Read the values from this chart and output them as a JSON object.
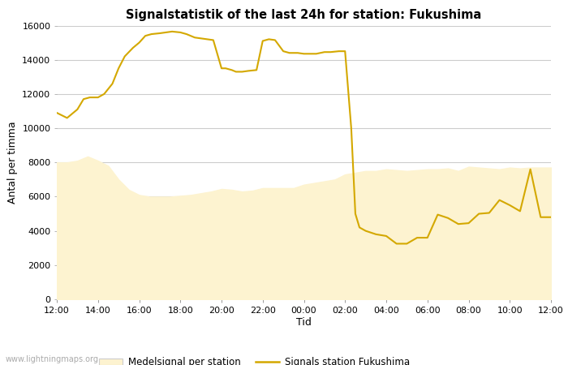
{
  "title": "Signalstatistik of the last 24h for station: Fukushima",
  "xlabel": "Tid",
  "ylabel": "Antal per timma",
  "xlim": [
    0,
    24
  ],
  "ylim": [
    0,
    16000
  ],
  "yticks": [
    0,
    2000,
    4000,
    6000,
    8000,
    10000,
    12000,
    14000,
    16000
  ],
  "xtick_labels": [
    "12:00",
    "14:00",
    "16:00",
    "18:00",
    "20:00",
    "22:00",
    "00:00",
    "02:00",
    "04:00",
    "06:00",
    "08:00",
    "10:00",
    "12:00"
  ],
  "background_color": "#ffffff",
  "grid_color": "#cccccc",
  "fill_color": "#fdf3d0",
  "line_color": "#d4a800",
  "watermark": "www.lightningmaps.org",
  "legend_fill_label": "Medelsignal per station",
  "legend_line_label": "Signals station Fukushima",
  "signal_x": [
    0,
    0.5,
    1,
    1.3,
    1.6,
    2,
    2.3,
    2.7,
    3,
    3.3,
    3.7,
    4,
    4.3,
    4.6,
    5,
    5.3,
    5.6,
    6,
    6.3,
    6.7,
    7,
    7.3,
    7.6,
    8,
    8.2,
    8.5,
    8.7,
    9,
    9.3,
    9.7,
    10,
    10.3,
    10.6,
    11,
    11.3,
    11.7,
    12,
    12.3,
    12.6,
    13,
    13.3,
    13.7,
    14,
    14.3,
    14.5,
    14.7,
    15,
    15.5,
    16,
    16.5,
    17,
    17.5,
    18,
    18.5,
    19,
    19.5,
    20,
    20.5,
    21,
    21.5,
    22,
    22.5,
    23,
    23.5,
    24
  ],
  "signal_y": [
    10900,
    10600,
    11100,
    11700,
    11800,
    11800,
    12000,
    12600,
    13500,
    14200,
    14700,
    15000,
    15400,
    15500,
    15550,
    15600,
    15650,
    15600,
    15500,
    15300,
    15250,
    15200,
    15150,
    13500,
    13500,
    13400,
    13300,
    13300,
    13350,
    13400,
    15100,
    15200,
    15150,
    14500,
    14400,
    14400,
    14350,
    14350,
    14350,
    14450,
    14450,
    14500,
    14500,
    10000,
    5000,
    4200,
    4000,
    3800,
    3700,
    3250,
    3250,
    3600,
    3600,
    4950,
    4750,
    4400,
    4450,
    5000,
    5050,
    5800,
    5500,
    5150,
    7600,
    4800,
    4800
  ],
  "fill_x": [
    0,
    0.5,
    1,
    1.5,
    2,
    2.5,
    3,
    3.5,
    4,
    4.5,
    5,
    5.5,
    6,
    6.5,
    7,
    7.5,
    8,
    8.5,
    9,
    9.5,
    10,
    10.5,
    11,
    11.5,
    12,
    12.5,
    13,
    13.5,
    14,
    14.5,
    15,
    15.5,
    16,
    16.5,
    17,
    17.5,
    18,
    18.5,
    19,
    19.5,
    20,
    20.5,
    21,
    21.5,
    22,
    22.5,
    23,
    23.5,
    24
  ],
  "fill_y": [
    8000,
    8000,
    8100,
    8350,
    8100,
    7800,
    7000,
    6400,
    6100,
    6000,
    6000,
    6000,
    6050,
    6100,
    6200,
    6300,
    6450,
    6400,
    6300,
    6350,
    6500,
    6500,
    6500,
    6500,
    6700,
    6800,
    6900,
    7000,
    7300,
    7400,
    7500,
    7500,
    7600,
    7550,
    7500,
    7550,
    7600,
    7600,
    7650,
    7500,
    7750,
    7700,
    7650,
    7600,
    7700,
    7650,
    7700,
    7700,
    7700
  ]
}
